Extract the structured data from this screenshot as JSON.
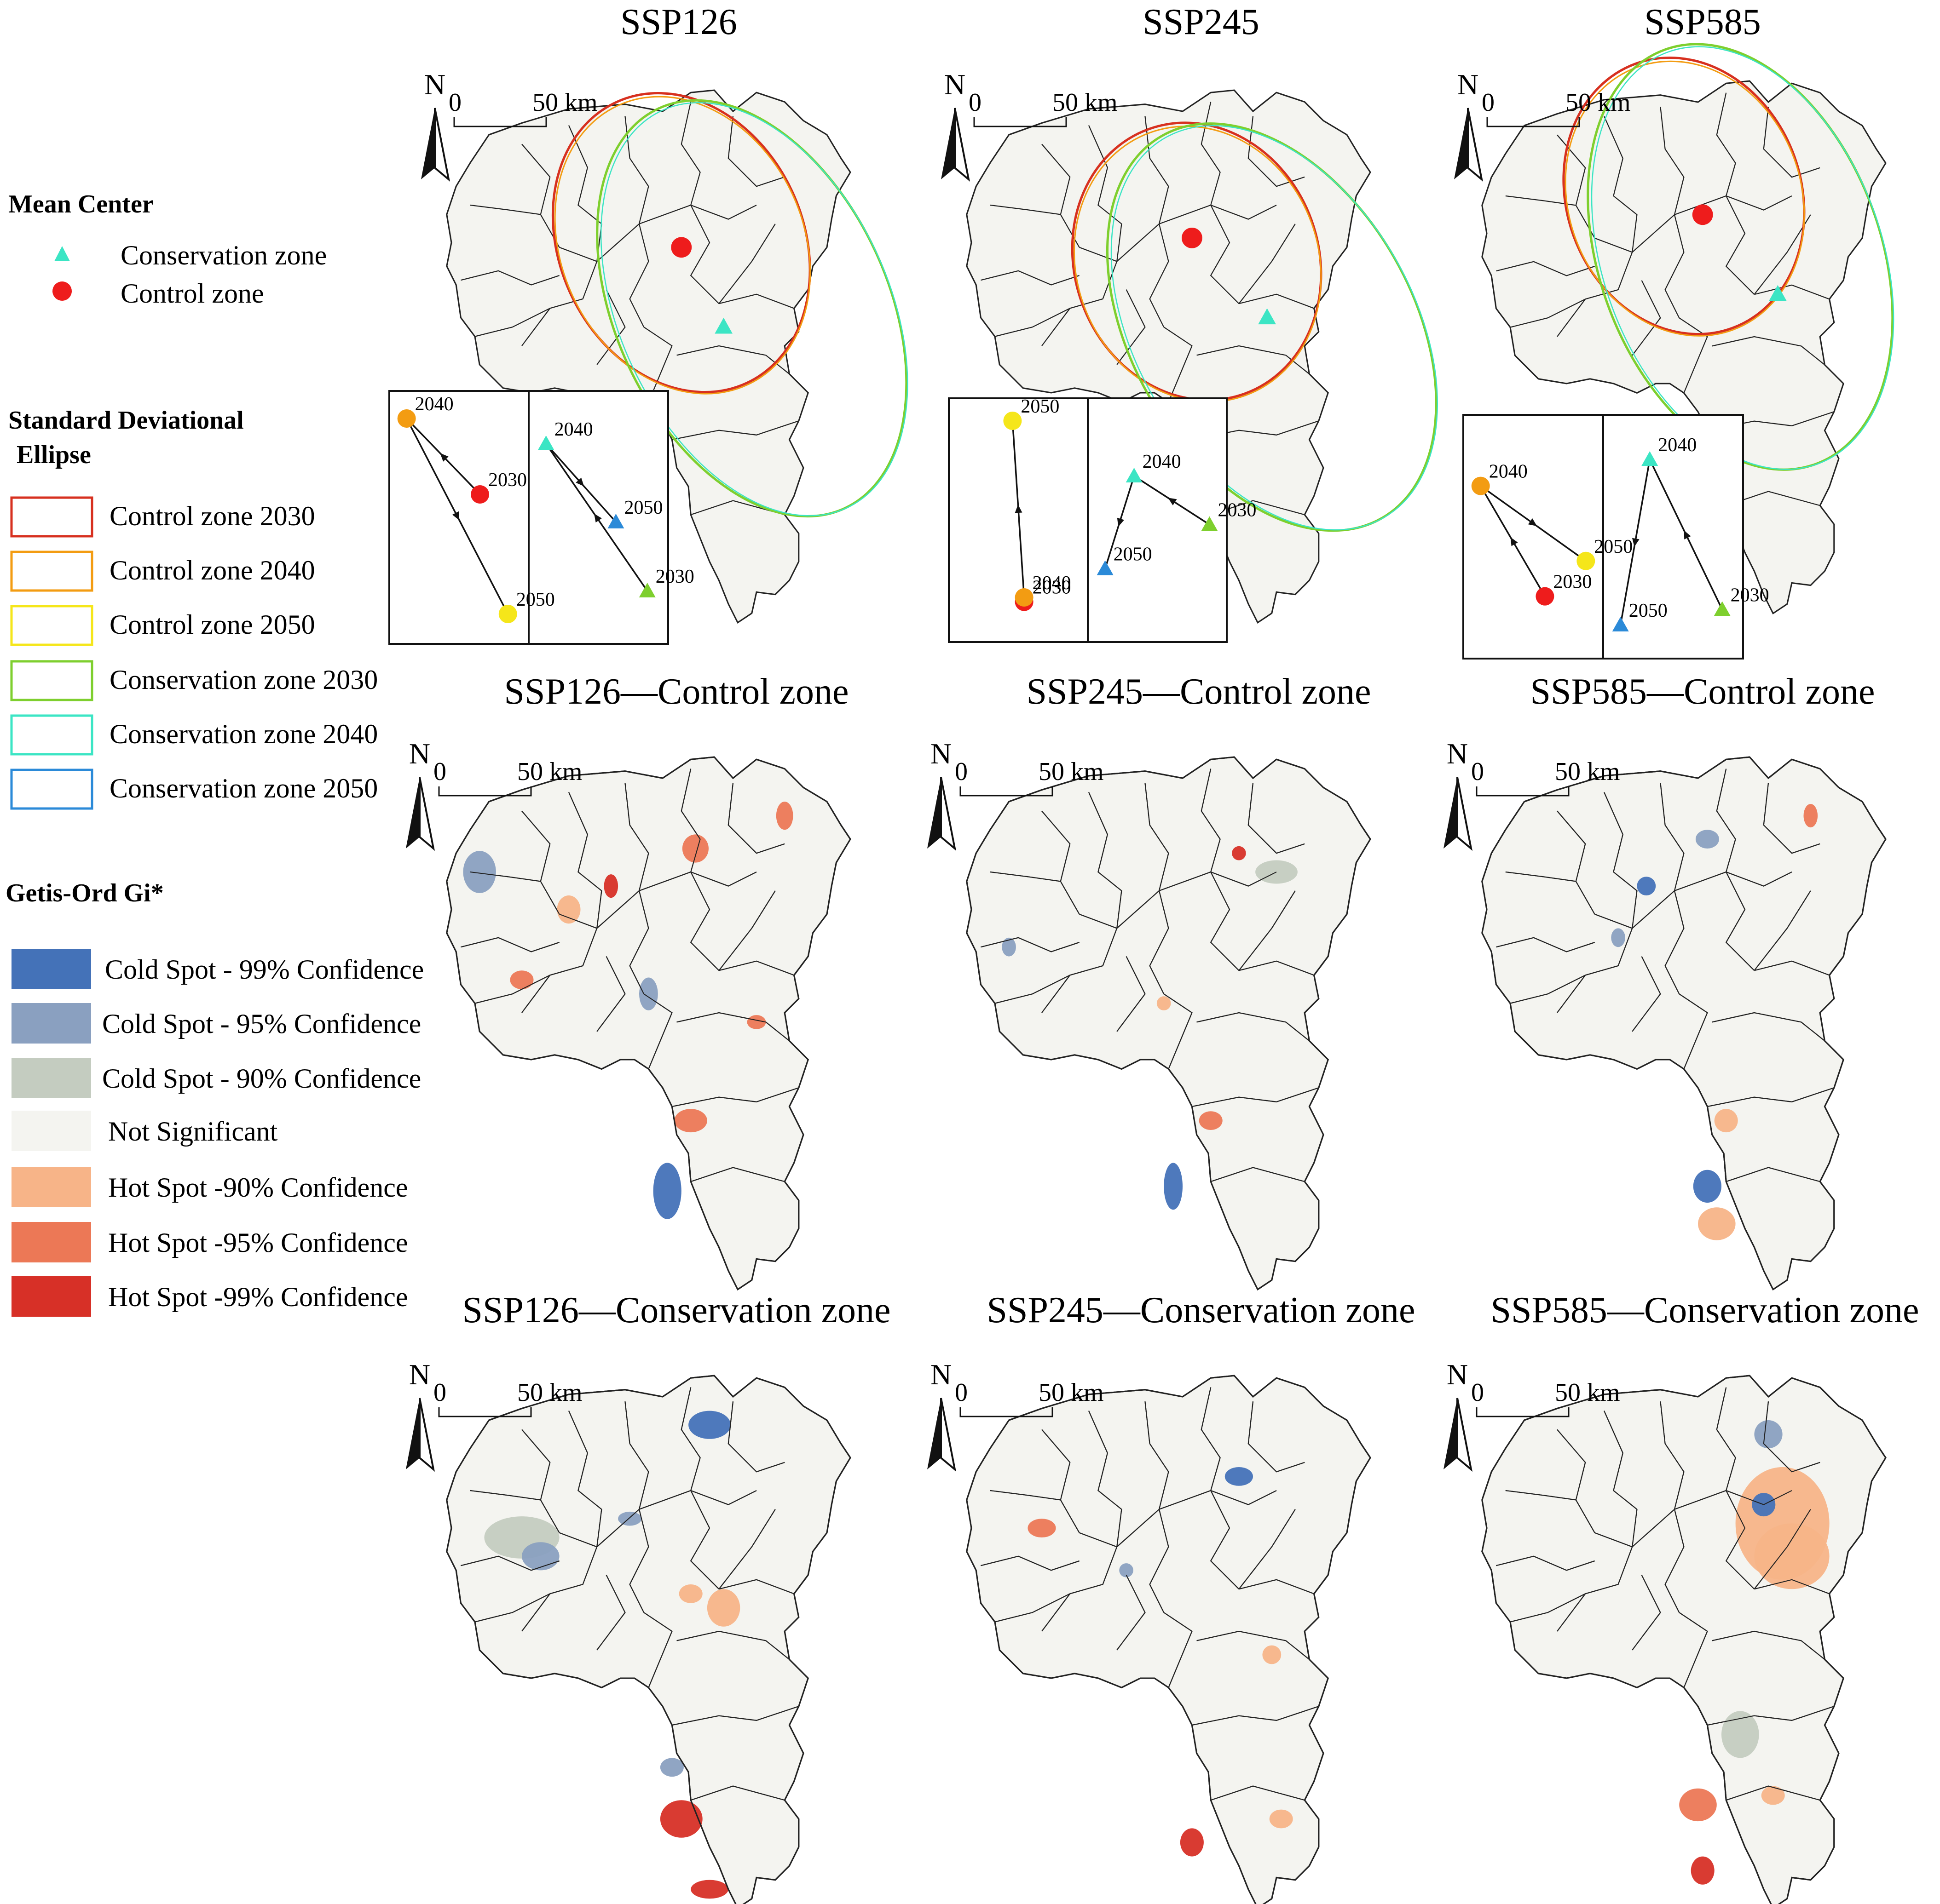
{
  "legend": {
    "mean_center": {
      "heading": "Mean Center",
      "items": [
        {
          "label": "Conservation zone",
          "symbol": "triangle",
          "color": "#3be5c4"
        },
        {
          "label": "Control zone",
          "symbol": "circle",
          "color": "#ee1c1c"
        }
      ]
    },
    "sde": {
      "heading_line1": "Standard Deviational",
      "heading_line2": "Ellipse",
      "items": [
        {
          "label": "Control zone 2030",
          "color": "#d7301f"
        },
        {
          "label": "Control zone 2040",
          "color": "#f39c12"
        },
        {
          "label": "Control zone 2050",
          "color": "#f5e61a"
        },
        {
          "label": "Conservation zone 2030",
          "color": "#7ecf2e"
        },
        {
          "label": "Conservation zone 2040",
          "color": "#3be5c4"
        },
        {
          "label": "Conservation zone 2050",
          "color": "#2b8ad8"
        }
      ]
    },
    "gi": {
      "heading": "Getis-Ord Gi*",
      "items": [
        {
          "label": "Cold Spot - 99% Confidence",
          "color": "#4472b8"
        },
        {
          "label": "Cold Spot - 95% Confidence",
          "color": "#8aa0c0"
        },
        {
          "label": "Cold Spot - 90% Confidence",
          "color": "#c4ccc0"
        },
        {
          "label": "Not Significant",
          "color": "#f4f4f0"
        },
        {
          "label": "Hot Spot -90% Confidence",
          "color": "#f7b488"
        },
        {
          "label": "Hot Spot -95% Confidence",
          "color": "#ec7856"
        },
        {
          "label": "Hot Spot -99% Confidence",
          "color": "#d73027"
        }
      ]
    }
  },
  "scale_bar": {
    "zero": "0",
    "distance": "50 km"
  },
  "north_label": "N",
  "row1": [
    {
      "title": "SSP126",
      "control_track": [
        {
          "year": "2030",
          "marker": "circle",
          "color": "#ee1c1c"
        },
        {
          "year": "2040",
          "marker": "circle",
          "color": "#f39c12"
        },
        {
          "year": "2050",
          "marker": "circle",
          "color": "#f5e61a"
        }
      ],
      "conservation_track": [
        {
          "year": "2030",
          "marker": "triangle",
          "color": "#7ecf2e"
        },
        {
          "year": "2040",
          "marker": "triangle",
          "color": "#3be5c4"
        },
        {
          "year": "2050",
          "marker": "triangle",
          "color": "#2b8ad8"
        }
      ]
    },
    {
      "title": "SSP245",
      "control_track": [
        {
          "year": "2030",
          "marker": "circle",
          "color": "#ee1c1c"
        },
        {
          "year": "2040",
          "marker": "circle",
          "color": "#f39c12"
        },
        {
          "year": "2050",
          "marker": "circle",
          "color": "#f5e61a"
        }
      ],
      "conservation_track": [
        {
          "year": "2030",
          "marker": "triangle",
          "color": "#7ecf2e"
        },
        {
          "year": "2040",
          "marker": "triangle",
          "color": "#3be5c4"
        },
        {
          "year": "2050",
          "marker": "triangle",
          "color": "#2b8ad8"
        }
      ]
    },
    {
      "title": "SSP585",
      "control_track": [
        {
          "year": "2030",
          "marker": "circle",
          "color": "#ee1c1c"
        },
        {
          "year": "2040",
          "marker": "circle",
          "color": "#f39c12"
        },
        {
          "year": "2050",
          "marker": "circle",
          "color": "#f5e61a"
        }
      ],
      "conservation_track": [
        {
          "year": "2030",
          "marker": "triangle",
          "color": "#7ecf2e"
        },
        {
          "year": "2040",
          "marker": "triangle",
          "color": "#3be5c4"
        },
        {
          "year": "2050",
          "marker": "triangle",
          "color": "#2b8ad8"
        }
      ]
    }
  ],
  "row2": [
    {
      "title": "SSP126—Control zone"
    },
    {
      "title": "SSP245—Control zone"
    },
    {
      "title": "SSP585—Control zone"
    }
  ],
  "row3": [
    {
      "title": "SSP126—Conservation zone"
    },
    {
      "title": "SSP245—Conservation zone"
    },
    {
      "title": "SSP585—Conservation zone"
    }
  ],
  "colors": {
    "region_fill": "#f4f4f0",
    "boundary": "#222222",
    "ellipse_control": "#d7301f",
    "ellipse_conservation": "#7ecf2e",
    "ellipse_conservation_2040": "#3be5c4"
  }
}
